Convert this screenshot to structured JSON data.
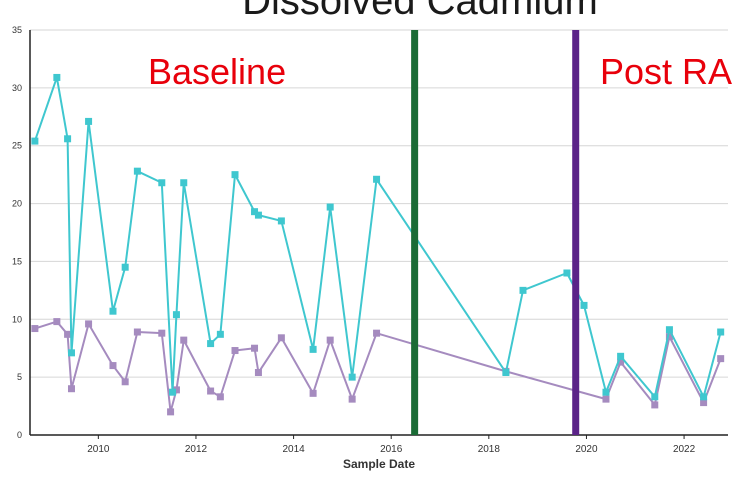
{
  "chart_data": {
    "type": "line",
    "title": "Dissolved Cadmium",
    "xlabel": "Sample Date",
    "ylabel": "",
    "xlim": [
      2008.6,
      2022.9
    ],
    "ylim": [
      0,
      35
    ],
    "x_ticks": [
      2010,
      2012,
      2014,
      2016,
      2018,
      2020,
      2022
    ],
    "x_tick_labels": [
      "2010",
      "2012",
      "2014",
      "2016",
      "2018",
      "2020",
      "2022"
    ],
    "y_ticks": [
      0,
      5,
      10,
      15,
      20,
      25,
      30,
      35
    ],
    "y_tick_labels": [
      "0",
      "5",
      "10",
      "15",
      "20",
      "25",
      "30",
      "35"
    ],
    "grid": "horizontal",
    "annotations": [
      {
        "text": "Baseline",
        "color": "#e8000b"
      },
      {
        "text": "Post RA",
        "color": "#e8000b"
      }
    ],
    "vlines": [
      {
        "x": 2016.48,
        "color": "#1a6b35"
      },
      {
        "x": 2019.78,
        "color": "#5b2388"
      }
    ],
    "series": [
      {
        "color": "#3fc7cf",
        "marker": "square",
        "x": [
          2008.7,
          2009.15,
          2009.37,
          2009.45,
          2009.8,
          2010.3,
          2010.55,
          2010.8,
          2011.3,
          2011.52,
          2011.6,
          2011.75,
          2012.3,
          2012.5,
          2012.8,
          2013.2,
          2013.28,
          2013.75,
          2014.4,
          2014.75,
          2015.2,
          2015.7,
          2018.35,
          2018.7,
          2019.6,
          2019.95,
          2020.4,
          2020.7,
          2021.4,
          2021.7,
          2022.4,
          2022.75
        ],
        "y": [
          25.4,
          30.9,
          25.6,
          7.1,
          27.1,
          10.7,
          14.5,
          22.8,
          21.8,
          3.7,
          10.4,
          21.8,
          7.9,
          8.7,
          22.5,
          19.3,
          19.0,
          18.5,
          7.4,
          19.7,
          5.0,
          22.1,
          5.4,
          12.5,
          14.0,
          11.2,
          3.7,
          6.8,
          3.3,
          9.1,
          3.3,
          8.9
        ]
      },
      {
        "color": "#a58bbf",
        "marker": "square",
        "x": [
          2008.7,
          2009.15,
          2009.37,
          2009.45,
          2009.8,
          2010.3,
          2010.55,
          2010.8,
          2011.3,
          2011.48,
          2011.6,
          2011.75,
          2012.3,
          2012.5,
          2012.8,
          2013.2,
          2013.28,
          2013.75,
          2014.4,
          2014.75,
          2015.2,
          2015.7,
          2018.35,
          2020.4,
          2020.7,
          2021.4,
          2021.7,
          2022.4,
          2022.75
        ],
        "y": [
          9.2,
          9.8,
          8.7,
          4.0,
          9.6,
          6.0,
          4.6,
          8.9,
          8.8,
          2.0,
          3.9,
          8.2,
          3.8,
          3.3,
          7.3,
          7.5,
          5.4,
          8.4,
          3.6,
          8.2,
          3.1,
          8.8,
          5.5,
          3.1,
          6.3,
          2.6,
          8.5,
          2.8,
          6.6
        ]
      }
    ]
  }
}
